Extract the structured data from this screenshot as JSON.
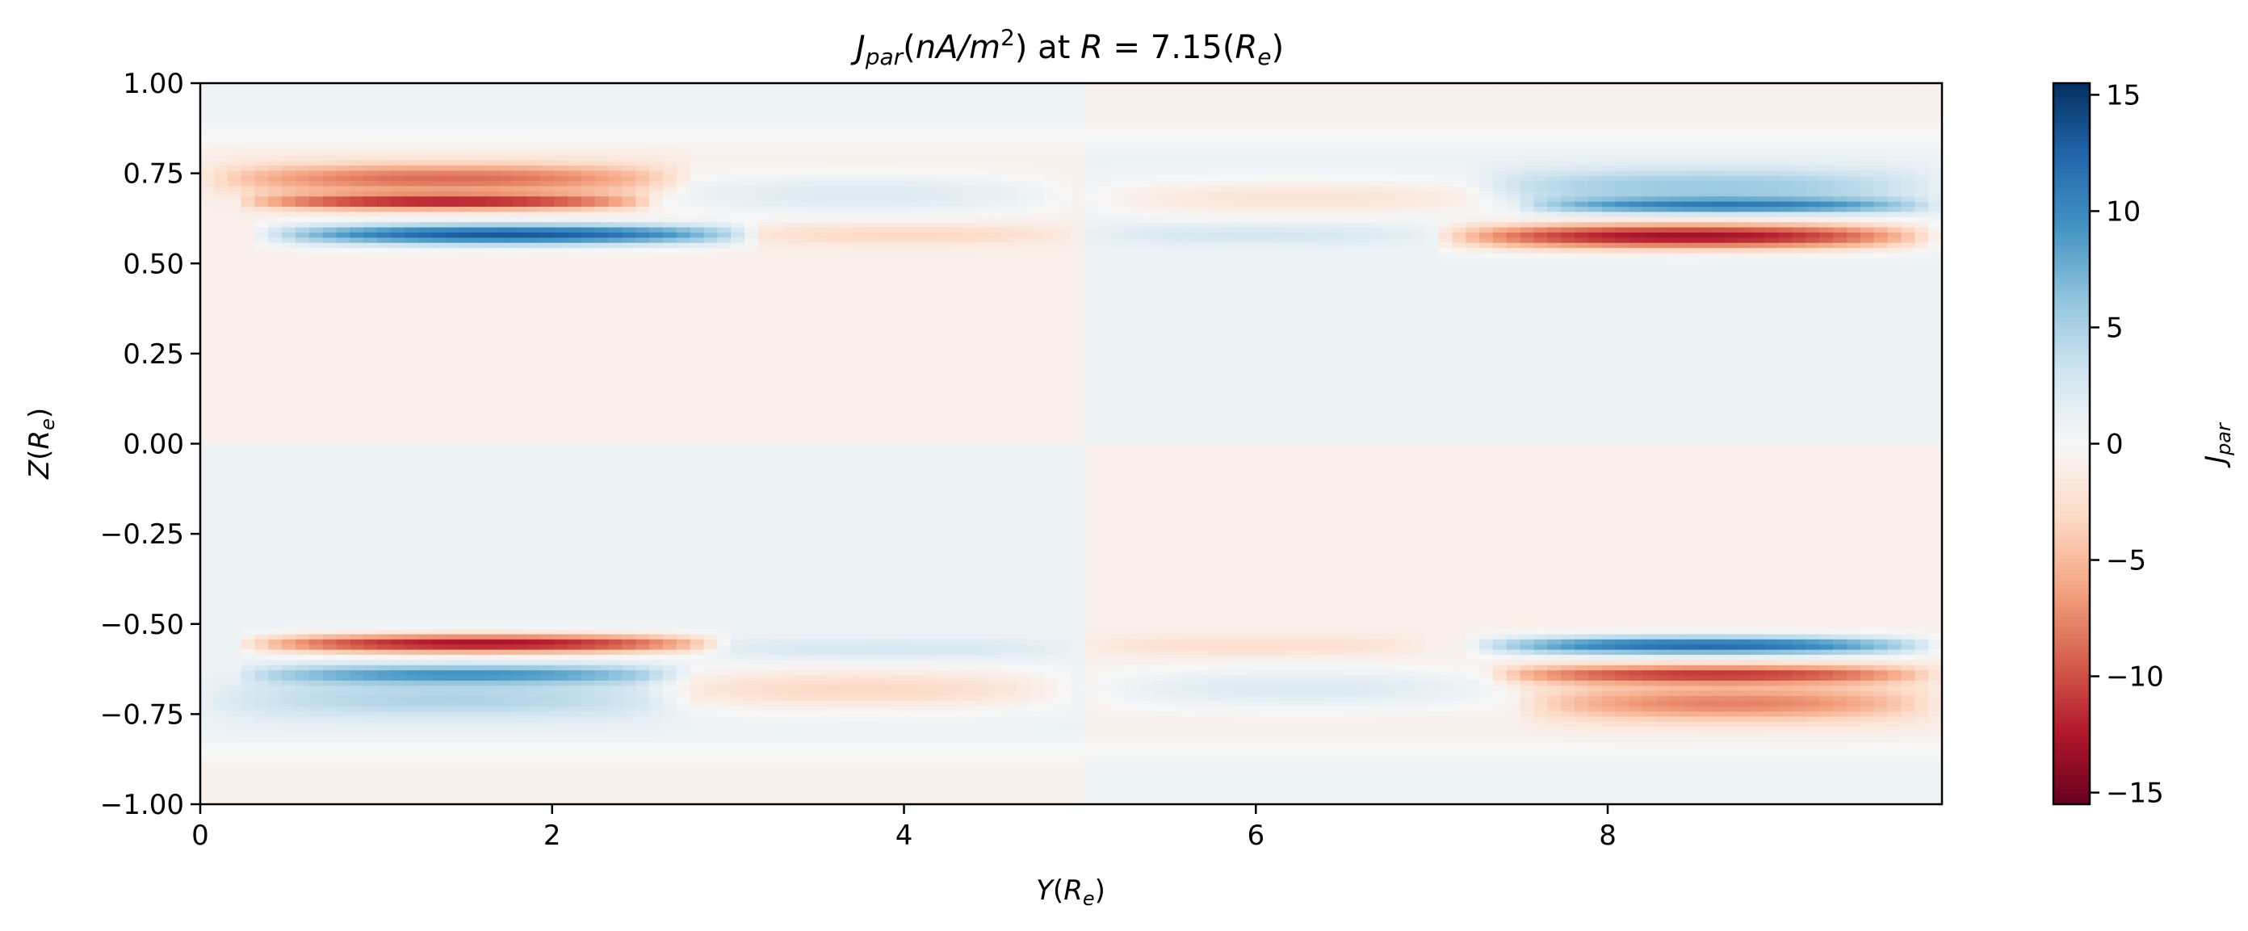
{
  "chart_data": {
    "type": "heatmap",
    "title": {
      "j": "J",
      "par": "par",
      "unit_open": "(",
      "unit_var": "nA",
      "unit_slash": "/",
      "unit_m": "m",
      "unit_exp": "2",
      "unit_close": ")",
      "at": " at ",
      "r": "R",
      "eq": " = 7.15(",
      "re_r": "R",
      "re_e": "e",
      "re_close": ")"
    },
    "xlabel": {
      "v": "Y",
      "open": "(",
      "r": "R",
      "e": "e",
      "close": ")"
    },
    "ylabel": {
      "v": "Z",
      "open": "(",
      "r": "R",
      "e": "e",
      "close": ")"
    },
    "colorbar_label": {
      "j": "J",
      "sub": "par"
    },
    "xlim": [
      0,
      9.9
    ],
    "ylim": [
      -1,
      1
    ],
    "x_ticks": [
      {
        "value": 0,
        "label": "0"
      },
      {
        "value": 2,
        "label": "2"
      },
      {
        "value": 4,
        "label": "4"
      },
      {
        "value": 6,
        "label": "6"
      },
      {
        "value": 8,
        "label": "8"
      }
    ],
    "y_ticks": [
      {
        "value": 1.0,
        "label": "1.00"
      },
      {
        "value": 0.75,
        "label": "0.75"
      },
      {
        "value": 0.5,
        "label": "0.50"
      },
      {
        "value": 0.25,
        "label": "0.25"
      },
      {
        "value": 0.0,
        "label": "0.00"
      },
      {
        "value": -0.25,
        "label": "−0.25"
      },
      {
        "value": -0.5,
        "label": "−0.50"
      },
      {
        "value": -0.75,
        "label": "−0.75"
      },
      {
        "value": -1.0,
        "label": "−1.00"
      }
    ],
    "colorbar": {
      "colormap": "RdBu",
      "vmin": -15.5,
      "vmax": 15.5,
      "ticks": [
        {
          "value": 15,
          "label": "15"
        },
        {
          "value": 10,
          "label": "10"
        },
        {
          "value": 5,
          "label": "5"
        },
        {
          "value": 0,
          "label": "0"
        },
        {
          "value": -5,
          "label": "−5"
        },
        {
          "value": -10,
          "label": "−10"
        },
        {
          "value": -15,
          "label": "−15"
        }
      ]
    },
    "bands": [
      {
        "y": 0.735,
        "x0": 0.0,
        "x1": 2.8,
        "peak": -8.0,
        "w": 0.03
      },
      {
        "y": 0.67,
        "x0": 0.2,
        "x1": 2.6,
        "peak": -11.0,
        "w": 0.015
      },
      {
        "y": 0.58,
        "x0": 0.3,
        "x1": 3.2,
        "peak": 14.0,
        "w": 0.02
      },
      {
        "y": 0.69,
        "x0": 2.5,
        "x1": 5.0,
        "peak": 3.0,
        "w": 0.04
      },
      {
        "y": 0.58,
        "x0": 3.0,
        "x1": 5.0,
        "peak": -2.5,
        "w": 0.02
      },
      {
        "y": 0.68,
        "x0": 5.0,
        "x1": 7.5,
        "peak": -3.0,
        "w": 0.035
      },
      {
        "y": 0.58,
        "x0": 5.0,
        "x1": 7.0,
        "peak": 2.0,
        "w": 0.02
      },
      {
        "y": 0.715,
        "x0": 7.2,
        "x1": 9.9,
        "peak": 5.0,
        "w": 0.035
      },
      {
        "y": 0.66,
        "x0": 7.5,
        "x1": 9.9,
        "peak": 9.0,
        "w": 0.015
      },
      {
        "y": 0.575,
        "x0": 7.0,
        "x1": 9.9,
        "peak": -14.0,
        "w": 0.025
      },
      {
        "y": -0.555,
        "x0": 0.2,
        "x1": 3.0,
        "peak": -14.0,
        "w": 0.018
      },
      {
        "y": -0.64,
        "x0": 0.2,
        "x1": 2.8,
        "peak": 8.0,
        "w": 0.018
      },
      {
        "y": -0.71,
        "x0": 0.0,
        "x1": 2.8,
        "peak": 4.0,
        "w": 0.04
      },
      {
        "y": -0.68,
        "x0": 2.5,
        "x1": 5.0,
        "peak": -4.0,
        "w": 0.04
      },
      {
        "y": -0.57,
        "x0": 2.8,
        "x1": 5.0,
        "peak": 2.0,
        "w": 0.02
      },
      {
        "y": -0.68,
        "x0": 5.0,
        "x1": 7.5,
        "peak": 3.0,
        "w": 0.04
      },
      {
        "y": -0.56,
        "x0": 5.0,
        "x1": 7.0,
        "peak": -2.0,
        "w": 0.02
      },
      {
        "y": -0.56,
        "x0": 7.2,
        "x1": 9.9,
        "peak": 13.0,
        "w": 0.018
      },
      {
        "y": -0.64,
        "x0": 7.3,
        "x1": 9.9,
        "peak": -10.0,
        "w": 0.018
      },
      {
        "y": -0.72,
        "x0": 7.5,
        "x1": 9.9,
        "peak": -7.0,
        "w": 0.035
      }
    ],
    "background": {
      "q1_upper_left": -0.8,
      "q2_upper_right": 0.8,
      "q3_lower_left": 0.8,
      "q4_lower_right": -0.8,
      "edge_left_top": 2.5,
      "edge_left_bottom": -2.5,
      "edge_right_top": -2.5,
      "edge_right_bottom": 2.5
    }
  }
}
